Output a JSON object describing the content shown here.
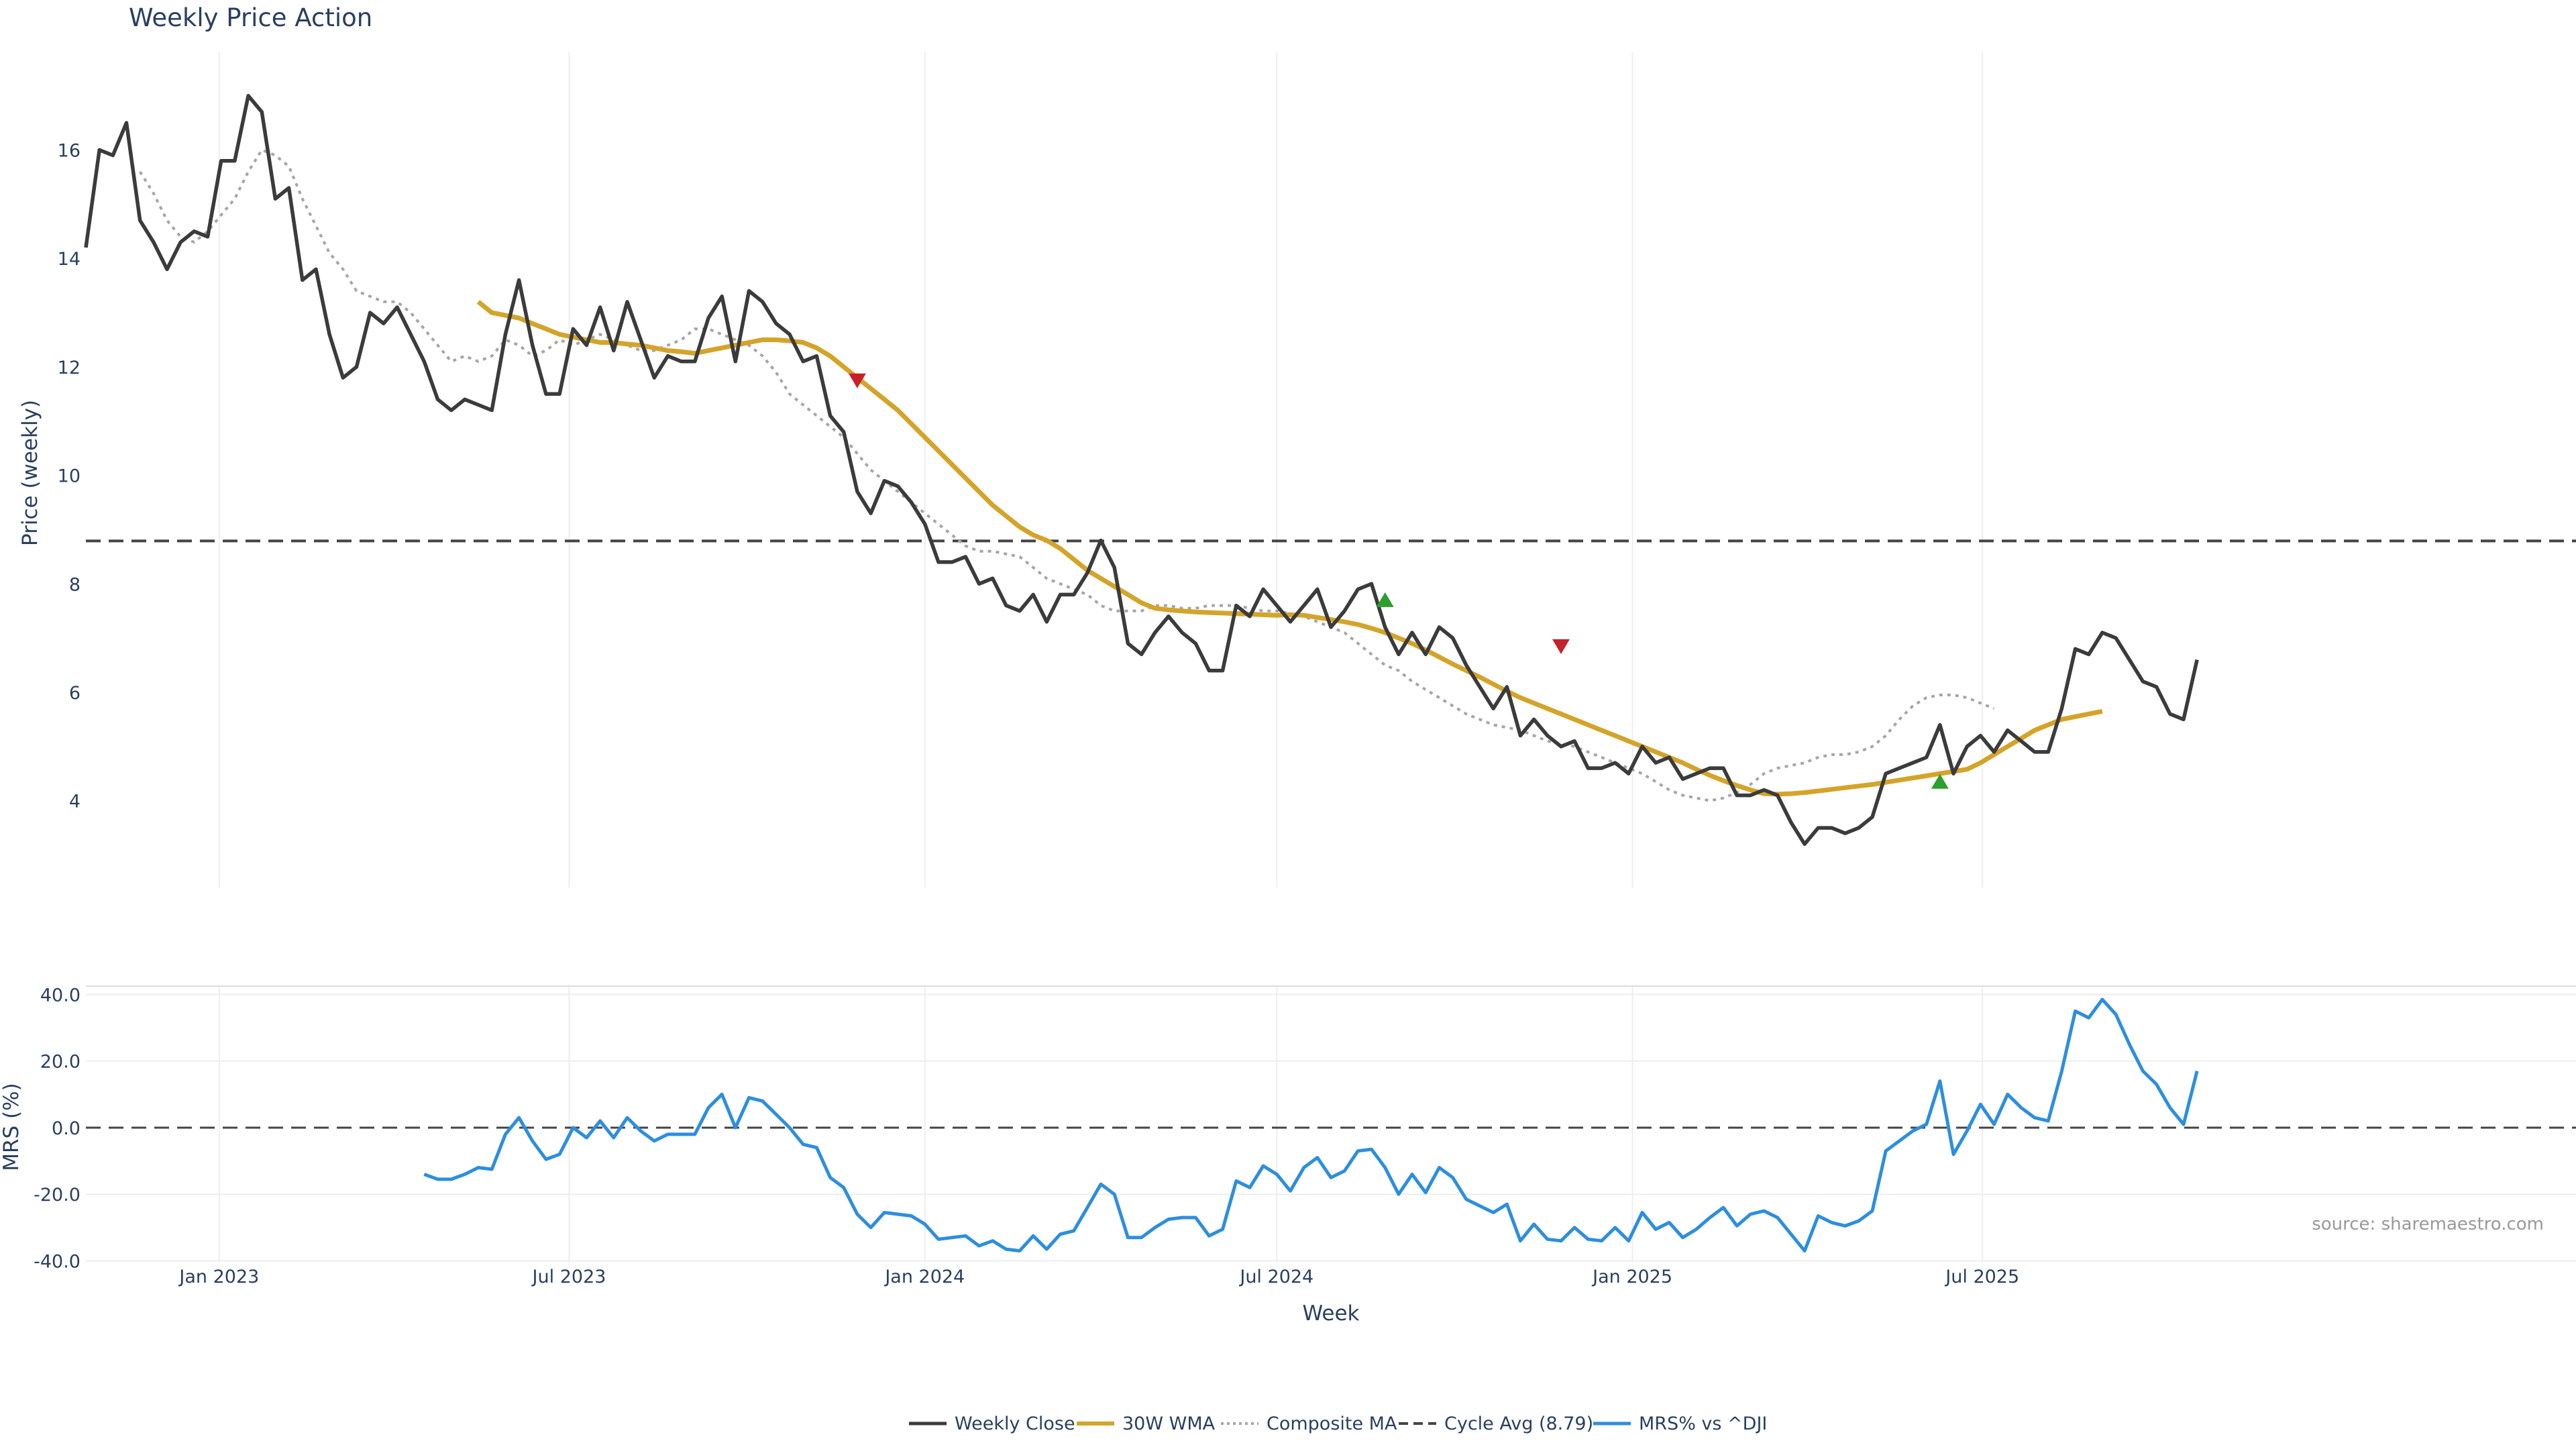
{
  "colors": {
    "close": "#3b3b3b",
    "wma": "#d4a42a",
    "composite": "#a6a6a6",
    "cycle": "#444444",
    "mrs": "#2d8ede",
    "buy": "#2ca02c",
    "sell": "#c8202a",
    "grid": "#eeeeee"
  },
  "source_text": "source: sharemaestro.com",
  "chart_data": [
    {
      "type": "line",
      "title": "Weekly Price Action",
      "ylabel": "Price (weekly)",
      "xlabel": "",
      "x_start": "2022-10-24",
      "x_step_days": 7,
      "x_ticks": [
        "Jan 2023",
        "Jul 2023",
        "Jan 2024",
        "Jul 2024",
        "Jan 2025",
        "Jul 2025"
      ],
      "y_ticks": [
        4,
        6,
        8,
        10,
        12,
        14,
        16
      ],
      "ylim": [
        2.4,
        17.8
      ],
      "grid": "x",
      "series": [
        {
          "name": "Weekly Close",
          "start_index": 0,
          "values": [
            14.2,
            16.0,
            15.9,
            16.5,
            14.7,
            14.3,
            13.8,
            14.3,
            14.5,
            14.4,
            15.8,
            15.8,
            17.0,
            16.7,
            15.1,
            15.3,
            13.6,
            13.8,
            12.6,
            11.8,
            12.0,
            13.0,
            12.8,
            13.1,
            12.6,
            12.1,
            11.4,
            11.2,
            11.4,
            11.3,
            11.2,
            12.6,
            13.6,
            12.4,
            11.5,
            11.5,
            12.7,
            12.4,
            13.1,
            12.3,
            13.2,
            12.5,
            11.8,
            12.2,
            12.1,
            12.1,
            12.9,
            13.3,
            12.1,
            13.4,
            13.2,
            12.8,
            12.6,
            12.1,
            12.2,
            11.1,
            10.8,
            9.7,
            9.3,
            9.9,
            9.8,
            9.5,
            9.1,
            8.4,
            8.4,
            8.5,
            8.0,
            8.1,
            7.6,
            7.5,
            7.8,
            7.3,
            7.8,
            7.8,
            8.2,
            8.8,
            8.3,
            6.9,
            6.7,
            7.1,
            7.4,
            7.1,
            6.9,
            6.4,
            6.4,
            7.6,
            7.4,
            7.9,
            7.6,
            7.3,
            7.6,
            7.9,
            7.2,
            7.5,
            7.9,
            8.0,
            7.2,
            6.7,
            7.1,
            6.7,
            7.2,
            7.0,
            6.5,
            6.1,
            5.7,
            6.1,
            5.2,
            5.5,
            5.2,
            5.0,
            5.1,
            4.6,
            4.6,
            4.7,
            4.5,
            5.0,
            4.7,
            4.8,
            4.4,
            4.5,
            4.6,
            4.6,
            4.1,
            4.1,
            4.2,
            4.1,
            3.6,
            3.2,
            3.5,
            3.5,
            3.4,
            3.5,
            3.7,
            4.5,
            4.6,
            4.7,
            4.8,
            5.4,
            4.5,
            5.0,
            5.2,
            4.9,
            5.3,
            5.1,
            4.9,
            4.9,
            5.7,
            6.8,
            6.7,
            7.1,
            7.0,
            6.6,
            6.2,
            6.1,
            5.6,
            5.5,
            6.6
          ]
        },
        {
          "name": "30W WMA",
          "start_index": 29,
          "values": [
            13.2,
            13.0,
            12.95,
            12.9,
            12.8,
            12.7,
            12.6,
            12.55,
            12.5,
            12.45,
            12.45,
            12.42,
            12.4,
            12.35,
            12.3,
            12.28,
            12.25,
            12.3,
            12.35,
            12.4,
            12.45,
            12.5,
            12.5,
            12.48,
            12.45,
            12.35,
            12.2,
            12.0,
            11.8,
            11.6,
            11.4,
            11.2,
            10.95,
            10.7,
            10.45,
            10.2,
            9.95,
            9.7,
            9.45,
            9.25,
            9.05,
            8.9,
            8.8,
            8.65,
            8.45,
            8.25,
            8.1,
            7.95,
            7.8,
            7.65,
            7.55,
            7.52,
            7.5,
            7.48,
            7.47,
            7.46,
            7.45,
            7.44,
            7.43,
            7.42,
            7.43,
            7.42,
            7.38,
            7.34,
            7.3,
            7.25,
            7.18,
            7.1,
            7.0,
            6.9,
            6.78,
            6.65,
            6.52,
            6.4,
            6.28,
            6.15,
            6.02,
            5.9,
            5.8,
            5.7,
            5.6,
            5.5,
            5.4,
            5.3,
            5.2,
            5.1,
            5.0,
            4.9,
            4.8,
            4.7,
            4.58,
            4.47,
            4.37,
            4.28,
            4.2,
            4.13,
            4.12,
            4.13,
            4.15,
            4.18,
            4.21,
            4.24,
            4.27,
            4.3,
            4.34,
            4.38,
            4.42,
            4.46,
            4.5,
            4.54,
            4.58,
            4.7,
            4.85,
            5.0,
            5.15,
            5.3,
            5.4,
            5.5,
            5.55,
            5.6,
            5.65
          ]
        },
        {
          "name": "Composite MA",
          "start_index": 4,
          "values": [
            15.6,
            15.2,
            14.7,
            14.4,
            14.3,
            14.5,
            14.8,
            15.1,
            15.6,
            16.0,
            15.9,
            15.7,
            15.1,
            14.6,
            14.1,
            13.8,
            13.4,
            13.3,
            13.2,
            13.2,
            13.0,
            12.7,
            12.4,
            12.1,
            12.2,
            12.1,
            12.2,
            12.5,
            12.4,
            12.2,
            12.3,
            12.5,
            12.4,
            12.5,
            12.6,
            12.5,
            12.4,
            12.3,
            12.3,
            12.4,
            12.5,
            12.7,
            12.7,
            12.6,
            12.5,
            12.4,
            12.2,
            11.9,
            11.5,
            11.3,
            11.1,
            10.9,
            10.7,
            10.4,
            10.1,
            9.9,
            9.7,
            9.5,
            9.3,
            9.1,
            8.9,
            8.7,
            8.6,
            8.6,
            8.55,
            8.5,
            8.3,
            8.1,
            8.0,
            7.9,
            7.8,
            7.6,
            7.5,
            7.5,
            7.5,
            7.6,
            7.6,
            7.55,
            7.55,
            7.6,
            7.6,
            7.6,
            7.55,
            7.5,
            7.5,
            7.45,
            7.4,
            7.3,
            7.2,
            7.1,
            6.9,
            6.7,
            6.5,
            6.4,
            6.2,
            6.05,
            5.9,
            5.75,
            5.6,
            5.5,
            5.4,
            5.35,
            5.3,
            5.2,
            5.1,
            5.05,
            5.0,
            4.9,
            4.8,
            4.7,
            4.6,
            4.5,
            4.35,
            4.2,
            4.1,
            4.05,
            4.0,
            4.05,
            4.15,
            4.3,
            4.5,
            4.6,
            4.65,
            4.7,
            4.8,
            4.85,
            4.85,
            4.9,
            5.0,
            5.2,
            5.5,
            5.75,
            5.9,
            5.95,
            5.95,
            5.9,
            5.8,
            5.7
          ]
        },
        {
          "name": "Cycle Avg (8.79)",
          "constant": 8.79
        }
      ],
      "markers": [
        {
          "kind": "sell",
          "x": "2023-11-27",
          "y": 11.75
        },
        {
          "kind": "buy",
          "x": "2024-08-26",
          "y": 7.7
        },
        {
          "kind": "sell",
          "x": "2024-11-25",
          "y": 6.85
        },
        {
          "kind": "buy",
          "x": "2025-06-09",
          "y": 4.35
        }
      ]
    },
    {
      "type": "line",
      "title": "",
      "ylabel": "MRS (%)",
      "xlabel": "Week",
      "x_start": "2022-10-24",
      "x_step_days": 7,
      "x_ticks": [
        "Jan 2023",
        "Jul 2023",
        "Jan 2024",
        "Jul 2024",
        "Jan 2025",
        "Jul 2025"
      ],
      "y_ticks": [
        "40.0",
        "20.0",
        "0.0",
        "-20.0",
        "-40.0"
      ],
      "ylim": [
        -40.5,
        42.5
      ],
      "series": [
        {
          "name": "MRS% vs ^DJI",
          "start_index": 25,
          "values": [
            -14,
            -15.5,
            -15.5,
            -14,
            -12,
            -12.5,
            -2,
            3,
            -4,
            -9.5,
            -8,
            0,
            -3,
            2,
            -3,
            3,
            -1,
            -4,
            -2,
            -2,
            -2,
            6,
            10,
            0,
            9,
            8,
            4,
            0,
            -5,
            -6,
            -15,
            -18,
            -26,
            -30,
            -25.5,
            -26,
            -26.5,
            -29,
            -33.5,
            -33,
            -32.5,
            -35.5,
            -34,
            -36.5,
            -37,
            -32.5,
            -36.5,
            -32,
            -31,
            -24,
            -17,
            -20,
            -33,
            -33,
            -30,
            -27.5,
            -27,
            -27,
            -32.5,
            -30.5,
            -16,
            -18,
            -11.5,
            -14,
            -19,
            -12,
            -9,
            -15,
            -13,
            -7,
            -6.5,
            -12,
            -20,
            -14,
            -19.5,
            -12,
            -15,
            -21.5,
            -23.5,
            -25.5,
            -23,
            -34,
            -29,
            -33.5,
            -34,
            -30,
            -33.5,
            -34,
            -30,
            -34,
            -25.5,
            -30.5,
            -28.5,
            -33,
            -30.5,
            -27,
            -24,
            -29.5,
            -26,
            -25,
            -27,
            -32,
            -37,
            -26.5,
            -28.5,
            -29.5,
            -28,
            -25,
            -7,
            -4,
            -1,
            1,
            14,
            -8,
            -1,
            7,
            1,
            10,
            6,
            3,
            2,
            17,
            35,
            33,
            38.5,
            34,
            25,
            17,
            13,
            6,
            1,
            17
          ]
        },
        {
          "name": "Cycle Avg (8.79)",
          "constant": 0.0,
          "legend": false
        }
      ]
    }
  ]
}
